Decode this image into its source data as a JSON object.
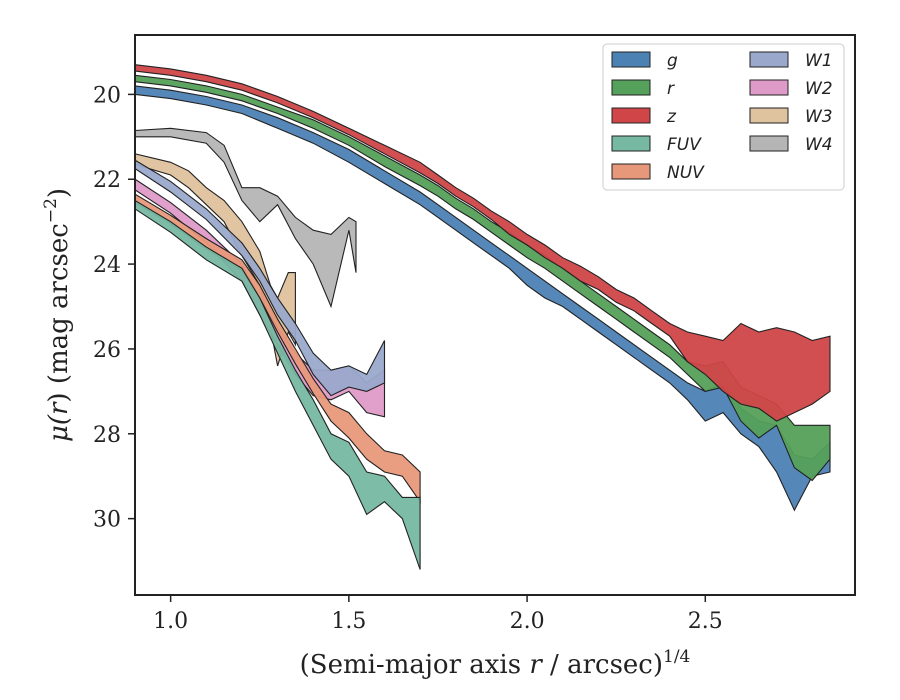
{
  "chart_data": {
    "type": "area",
    "title": "",
    "xlabel": "(Semi-major axis r / arcsec)",
    "xlabel_sup": "1/4",
    "ylabel": "μ(r) (mag arcsec",
    "ylabel_sup": "−2",
    "ylabel_tail": ")",
    "xlim": [
      0.9,
      2.92
    ],
    "ylim": [
      31.8,
      18.6
    ],
    "y_inverted": true,
    "xticks": [
      1.0,
      1.5,
      2.0,
      2.5
    ],
    "xtick_labels": [
      "1.0",
      "1.5",
      "2.0",
      "2.5"
    ],
    "yticks": [
      20,
      22,
      24,
      26,
      28,
      30
    ],
    "ytick_labels": [
      "20",
      "22",
      "24",
      "26",
      "28",
      "30"
    ],
    "grid": false,
    "legend_placement": "top-right",
    "legend_columns": 2,
    "series": [
      {
        "name": "g",
        "color": "#4c81b4",
        "x": [
          0.9,
          1.0,
          1.1,
          1.2,
          1.3,
          1.4,
          1.5,
          1.6,
          1.7,
          1.75,
          1.8,
          1.85,
          1.9,
          1.95,
          2.0,
          2.05,
          2.1,
          2.15,
          2.2,
          2.25,
          2.3,
          2.35,
          2.4,
          2.45,
          2.5,
          2.55,
          2.6,
          2.65,
          2.7,
          2.75,
          2.8,
          2.85
        ],
        "lower": [
          19.8,
          19.9,
          20.05,
          20.25,
          20.55,
          20.9,
          21.3,
          21.8,
          22.3,
          22.6,
          22.9,
          23.2,
          23.5,
          23.8,
          24.1,
          24.4,
          24.7,
          25.0,
          25.3,
          25.6,
          25.9,
          26.2,
          26.5,
          26.8,
          27.0,
          26.8,
          27.4,
          27.7,
          27.8,
          28.5,
          28.6,
          28.2
        ],
        "upper": [
          20.0,
          20.1,
          20.25,
          20.45,
          20.8,
          21.15,
          21.6,
          22.1,
          22.6,
          22.9,
          23.2,
          23.5,
          23.8,
          24.1,
          24.5,
          24.8,
          25.0,
          25.3,
          25.6,
          25.9,
          26.2,
          26.5,
          26.8,
          27.2,
          27.7,
          27.5,
          28.0,
          28.3,
          28.9,
          29.8,
          29.0,
          28.9
        ]
      },
      {
        "name": "r",
        "color": "#55a05a",
        "x": [
          0.9,
          1.0,
          1.1,
          1.2,
          1.3,
          1.4,
          1.5,
          1.6,
          1.7,
          1.75,
          1.8,
          1.85,
          1.9,
          1.95,
          2.0,
          2.05,
          2.1,
          2.15,
          2.2,
          2.25,
          2.3,
          2.35,
          2.4,
          2.45,
          2.5,
          2.55,
          2.6,
          2.65,
          2.7,
          2.75,
          2.8,
          2.85
        ],
        "lower": [
          19.55,
          19.65,
          19.8,
          20.0,
          20.3,
          20.6,
          21.0,
          21.45,
          21.9,
          22.15,
          22.45,
          22.7,
          23.0,
          23.25,
          23.55,
          23.8,
          24.1,
          24.4,
          24.7,
          25.0,
          25.3,
          25.6,
          25.9,
          26.3,
          26.4,
          26.3,
          26.9,
          27.1,
          27.3,
          27.8,
          27.8,
          27.8
        ],
        "upper": [
          19.7,
          19.8,
          19.95,
          20.15,
          20.45,
          20.8,
          21.2,
          21.7,
          22.15,
          22.4,
          22.7,
          22.95,
          23.25,
          23.55,
          23.85,
          24.1,
          24.4,
          24.7,
          25.0,
          25.3,
          25.6,
          25.9,
          26.2,
          26.6,
          27.0,
          26.9,
          27.7,
          28.1,
          27.8,
          28.8,
          29.1,
          28.6
        ]
      },
      {
        "name": "z",
        "color": "#d04648",
        "x": [
          0.9,
          1.0,
          1.1,
          1.2,
          1.3,
          1.4,
          1.5,
          1.6,
          1.7,
          1.75,
          1.8,
          1.85,
          1.9,
          1.95,
          2.0,
          2.05,
          2.1,
          2.15,
          2.2,
          2.25,
          2.3,
          2.35,
          2.4,
          2.45,
          2.5,
          2.55,
          2.6,
          2.65,
          2.7,
          2.75,
          2.8,
          2.85
        ],
        "lower": [
          19.3,
          19.4,
          19.55,
          19.75,
          20.05,
          20.4,
          20.8,
          21.2,
          21.6,
          21.9,
          22.2,
          22.45,
          22.75,
          23.0,
          23.3,
          23.55,
          23.85,
          24.05,
          24.3,
          24.6,
          24.8,
          25.1,
          25.4,
          25.6,
          25.7,
          25.8,
          25.4,
          25.6,
          25.5,
          25.6,
          25.8,
          25.7
        ],
        "upper": [
          19.45,
          19.55,
          19.7,
          19.9,
          20.2,
          20.55,
          20.95,
          21.4,
          21.85,
          22.1,
          22.4,
          22.65,
          22.95,
          23.3,
          23.55,
          23.85,
          24.1,
          24.4,
          24.6,
          24.9,
          25.1,
          25.4,
          25.7,
          26.3,
          26.6,
          27.0,
          27.3,
          27.4,
          27.7,
          27.5,
          27.3,
          27.0
        ]
      },
      {
        "name": "FUV",
        "color": "#76b8a2",
        "x": [
          0.9,
          1.0,
          1.1,
          1.2,
          1.25,
          1.3,
          1.35,
          1.4,
          1.45,
          1.5,
          1.55,
          1.6,
          1.65,
          1.7
        ],
        "lower": [
          22.5,
          23.0,
          23.6,
          24.1,
          24.8,
          25.7,
          26.5,
          27.2,
          28.0,
          28.2,
          28.9,
          29.0,
          29.5,
          29.5
        ],
        "upper": [
          22.7,
          23.25,
          23.9,
          24.4,
          25.2,
          26.1,
          27.0,
          27.8,
          28.6,
          29.0,
          29.9,
          29.6,
          30.0,
          31.2
        ]
      },
      {
        "name": "NUV",
        "color": "#e8987a",
        "x": [
          0.9,
          1.0,
          1.1,
          1.2,
          1.25,
          1.3,
          1.35,
          1.4,
          1.45,
          1.5,
          1.55,
          1.6,
          1.65,
          1.7
        ],
        "lower": [
          22.35,
          22.85,
          23.4,
          23.9,
          24.5,
          25.3,
          26.0,
          26.7,
          27.3,
          27.5,
          28.0,
          28.4,
          28.5,
          28.9
        ],
        "upper": [
          22.55,
          23.05,
          23.65,
          24.15,
          24.8,
          25.6,
          26.35,
          27.05,
          27.7,
          28.1,
          28.6,
          28.9,
          29.0,
          29.6
        ]
      },
      {
        "name": "W1",
        "color": "#9aa9cb",
        "x": [
          0.9,
          1.0,
          1.1,
          1.2,
          1.25,
          1.3,
          1.35,
          1.4,
          1.45,
          1.5,
          1.55,
          1.6
        ],
        "lower": [
          21.55,
          22.05,
          22.7,
          23.5,
          24.1,
          24.8,
          25.4,
          26.1,
          26.5,
          26.4,
          26.6,
          25.8
        ],
        "upper": [
          21.75,
          22.3,
          22.95,
          23.8,
          24.4,
          25.2,
          25.8,
          26.6,
          27.1,
          26.9,
          27.0,
          26.8
        ]
      },
      {
        "name": "W2",
        "color": "#df9bc8",
        "x": [
          0.9,
          1.0,
          1.1,
          1.2,
          1.25,
          1.3,
          1.35,
          1.4,
          1.45,
          1.5,
          1.55,
          1.6
        ],
        "lower": [
          22.0,
          22.55,
          23.2,
          24.0,
          24.8,
          25.5,
          26.1,
          26.5,
          26.5,
          26.4,
          26.8,
          26.5
        ],
        "upper": [
          22.25,
          22.8,
          23.5,
          24.4,
          25.2,
          25.9,
          26.6,
          27.1,
          27.2,
          27.0,
          27.5,
          27.6
        ]
      },
      {
        "name": "W3",
        "color": "#dfc29e",
        "x": [
          0.9,
          1.0,
          1.05,
          1.1,
          1.15,
          1.2,
          1.25,
          1.28,
          1.3,
          1.33,
          1.35
        ],
        "lower": [
          21.4,
          21.6,
          21.8,
          22.2,
          22.5,
          23.0,
          23.7,
          24.5,
          24.8,
          24.2,
          24.2
        ],
        "upper": [
          21.65,
          21.9,
          22.2,
          22.6,
          23.0,
          23.8,
          24.5,
          25.5,
          26.4,
          25.6,
          25.9
        ]
      },
      {
        "name": "W4",
        "color": "#b5b5b5",
        "x": [
          0.9,
          1.0,
          1.1,
          1.15,
          1.2,
          1.25,
          1.3,
          1.35,
          1.4,
          1.45,
          1.5,
          1.52
        ],
        "lower": [
          20.85,
          20.8,
          20.9,
          21.2,
          22.2,
          22.2,
          22.4,
          22.9,
          23.2,
          23.3,
          22.9,
          23.0
        ],
        "upper": [
          21.0,
          21.0,
          21.15,
          21.6,
          22.5,
          23.0,
          22.6,
          23.4,
          24.0,
          25.0,
          23.2,
          24.2
        ]
      }
    ]
  }
}
